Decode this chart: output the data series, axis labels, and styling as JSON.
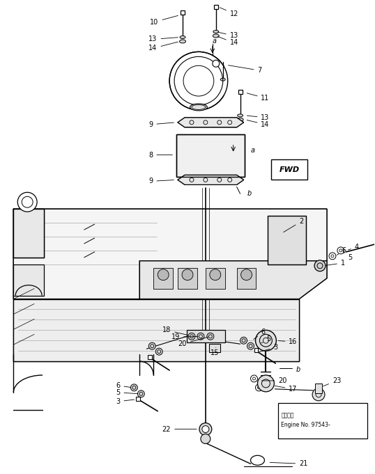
{
  "background_color": "#ffffff",
  "line_color": "#000000",
  "fig_width": 5.38,
  "fig_height": 6.81,
  "dpi": 100,
  "engine_note_line1": "适用号框",
  "engine_note_line2": "Engine No. 97543-",
  "fwd_label": "FWD"
}
